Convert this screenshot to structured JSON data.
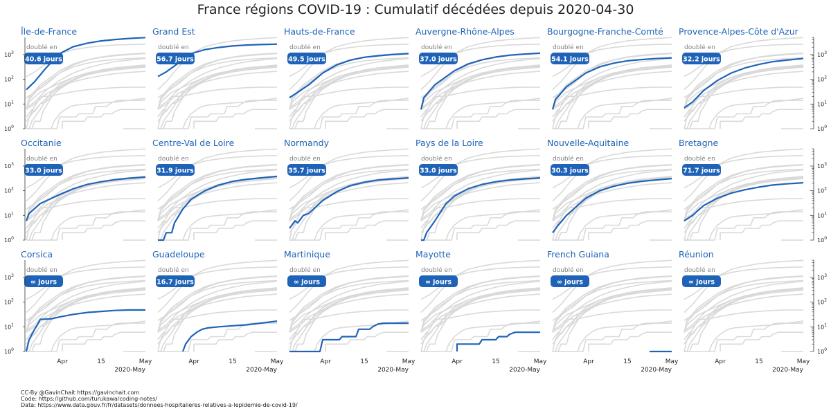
{
  "colors": {
    "highlight": "#1f63b8",
    "background": "#d9d9d9",
    "title": "#1f63b8",
    "badge": "#1f63b8"
  },
  "footer": {
    "line1": "CC-By @GavinChait https://gavinchait.com",
    "line2": "Code: https://github.com/turukawa/coding-notes/",
    "line3": "Data: https://www.data.gouv.fr/fr/datasets/donnees-hospitalieres-relatives-a-lepidemie-de-covid-19/"
  },
  "chart_data": {
    "type": "line",
    "title": "France régions COVID-19 : Cumulatif décédées depuis 2020-04-30",
    "yscale": "log",
    "ylim": [
      1,
      5000
    ],
    "y_ticks": [
      {
        "value": 1,
        "base": "10",
        "exp": "0"
      },
      {
        "value": 10,
        "base": "10",
        "exp": "1"
      },
      {
        "value": 100,
        "base": "10",
        "exp": "2"
      },
      {
        "value": 1000,
        "base": "10",
        "exp": "3"
      }
    ],
    "xlim": [
      "2020-03-19",
      "2020-05-01"
    ],
    "x_ticks": [
      {
        "date": "2020-04-01",
        "label": "Apr"
      },
      {
        "date": "2020-04-15",
        "label": "15"
      },
      {
        "date": "2020-05-01",
        "label": "May"
      }
    ],
    "x_sublabel": "2020-May",
    "doubled_label": "doublé en",
    "panels": [
      {
        "name": "Île-de-France",
        "doubling": "40.6 jours",
        "points": [
          [
            "2020-03-19",
            38
          ],
          [
            "2020-03-22",
            80
          ],
          [
            "2020-03-26",
            280
          ],
          [
            "2020-03-31",
            1100
          ],
          [
            "2020-04-05",
            2100
          ],
          [
            "2020-04-10",
            2900
          ],
          [
            "2020-04-15",
            3600
          ],
          [
            "2020-04-20",
            4100
          ],
          [
            "2020-04-25",
            4500
          ],
          [
            "2020-05-01",
            4900
          ]
        ]
      },
      {
        "name": "Grand Est",
        "doubling": "56.7 jours",
        "points": [
          [
            "2020-03-19",
            130
          ],
          [
            "2020-03-22",
            200
          ],
          [
            "2020-03-26",
            420
          ],
          [
            "2020-03-31",
            1100
          ],
          [
            "2020-04-05",
            1600
          ],
          [
            "2020-04-10",
            1950
          ],
          [
            "2020-04-15",
            2250
          ],
          [
            "2020-04-20",
            2450
          ],
          [
            "2020-04-25",
            2550
          ],
          [
            "2020-05-01",
            2650
          ]
        ]
      },
      {
        "name": "Hauts-de-France",
        "doubling": "49.5 jours",
        "points": [
          [
            "2020-03-19",
            18
          ],
          [
            "2020-03-22",
            30
          ],
          [
            "2020-03-26",
            60
          ],
          [
            "2020-03-31",
            180
          ],
          [
            "2020-04-05",
            380
          ],
          [
            "2020-04-10",
            600
          ],
          [
            "2020-04-15",
            780
          ],
          [
            "2020-04-20",
            900
          ],
          [
            "2020-04-25",
            1000
          ],
          [
            "2020-05-01",
            1100
          ]
        ]
      },
      {
        "name": "Auvergne-Rhône-Alpes",
        "doubling": "37.0 jours",
        "points": [
          [
            "2020-03-19",
            6
          ],
          [
            "2020-03-20",
            18
          ],
          [
            "2020-03-24",
            60
          ],
          [
            "2020-03-31",
            220
          ],
          [
            "2020-04-05",
            420
          ],
          [
            "2020-04-10",
            620
          ],
          [
            "2020-04-15",
            800
          ],
          [
            "2020-04-20",
            950
          ],
          [
            "2020-04-25",
            1050
          ],
          [
            "2020-05-01",
            1150
          ]
        ]
      },
      {
        "name": "Bourgogne-Franche-Comté",
        "doubling": "54.1 jours",
        "points": [
          [
            "2020-03-19",
            6
          ],
          [
            "2020-03-20",
            15
          ],
          [
            "2020-03-24",
            50
          ],
          [
            "2020-03-31",
            180
          ],
          [
            "2020-04-05",
            320
          ],
          [
            "2020-04-10",
            450
          ],
          [
            "2020-04-15",
            560
          ],
          [
            "2020-04-20",
            630
          ],
          [
            "2020-04-25",
            690
          ],
          [
            "2020-05-01",
            740
          ]
        ]
      },
      {
        "name": "Provence-Alpes-Côte d'Azur",
        "doubling": "32.2 jours",
        "points": [
          [
            "2020-03-19",
            7
          ],
          [
            "2020-03-22",
            12
          ],
          [
            "2020-03-26",
            35
          ],
          [
            "2020-03-31",
            90
          ],
          [
            "2020-04-05",
            180
          ],
          [
            "2020-04-10",
            290
          ],
          [
            "2020-04-15",
            400
          ],
          [
            "2020-04-20",
            520
          ],
          [
            "2020-04-25",
            600
          ],
          [
            "2020-05-01",
            700
          ]
        ]
      },
      {
        "name": "Occitanie",
        "doubling": "33.0 jours",
        "points": [
          [
            "2020-03-19",
            6
          ],
          [
            "2020-03-20",
            12
          ],
          [
            "2020-03-24",
            30
          ],
          [
            "2020-03-31",
            70
          ],
          [
            "2020-04-05",
            120
          ],
          [
            "2020-04-10",
            180
          ],
          [
            "2020-04-15",
            230
          ],
          [
            "2020-04-20",
            280
          ],
          [
            "2020-04-25",
            320
          ],
          [
            "2020-05-01",
            360
          ]
        ]
      },
      {
        "name": "Centre-Val de Loire",
        "doubling": "31.9 jours",
        "points": [
          [
            "2020-03-19",
            1
          ],
          [
            "2020-03-21",
            1
          ],
          [
            "2020-03-22",
            2
          ],
          [
            "2020-03-24",
            2
          ],
          [
            "2020-03-25",
            5
          ],
          [
            "2020-03-28",
            18
          ],
          [
            "2020-03-31",
            45
          ],
          [
            "2020-04-05",
            100
          ],
          [
            "2020-04-10",
            170
          ],
          [
            "2020-04-15",
            240
          ],
          [
            "2020-04-20",
            290
          ],
          [
            "2020-04-25",
            330
          ],
          [
            "2020-05-01",
            380
          ]
        ]
      },
      {
        "name": "Normandy",
        "doubling": "35.7 jours",
        "points": [
          [
            "2020-03-19",
            3
          ],
          [
            "2020-03-21",
            6
          ],
          [
            "2020-03-22",
            5
          ],
          [
            "2020-03-24",
            10
          ],
          [
            "2020-03-26",
            12
          ],
          [
            "2020-03-31",
            40
          ],
          [
            "2020-04-05",
            90
          ],
          [
            "2020-04-10",
            160
          ],
          [
            "2020-04-15",
            220
          ],
          [
            "2020-04-20",
            270
          ],
          [
            "2020-04-25",
            300
          ],
          [
            "2020-05-01",
            330
          ]
        ]
      },
      {
        "name": "Pays de la Loire",
        "doubling": "33.0 jours",
        "points": [
          [
            "2020-03-19",
            1
          ],
          [
            "2020-03-20",
            1
          ],
          [
            "2020-03-21",
            2
          ],
          [
            "2020-03-24",
            6
          ],
          [
            "2020-03-28",
            30
          ],
          [
            "2020-03-31",
            60
          ],
          [
            "2020-04-05",
            120
          ],
          [
            "2020-04-10",
            180
          ],
          [
            "2020-04-15",
            230
          ],
          [
            "2020-04-20",
            270
          ],
          [
            "2020-04-25",
            300
          ],
          [
            "2020-05-01",
            330
          ]
        ]
      },
      {
        "name": "Nouvelle-Aquitaine",
        "doubling": "30.3 jours",
        "points": [
          [
            "2020-03-19",
            2
          ],
          [
            "2020-03-21",
            4
          ],
          [
            "2020-03-24",
            10
          ],
          [
            "2020-03-28",
            25
          ],
          [
            "2020-03-31",
            50
          ],
          [
            "2020-04-05",
            100
          ],
          [
            "2020-04-10",
            150
          ],
          [
            "2020-04-15",
            200
          ],
          [
            "2020-04-20",
            240
          ],
          [
            "2020-04-25",
            270
          ],
          [
            "2020-05-01",
            310
          ]
        ]
      },
      {
        "name": "Bretagne",
        "doubling": "71.7 jours",
        "points": [
          [
            "2020-03-19",
            6
          ],
          [
            "2020-03-22",
            10
          ],
          [
            "2020-03-26",
            25
          ],
          [
            "2020-03-31",
            50
          ],
          [
            "2020-04-05",
            80
          ],
          [
            "2020-04-10",
            110
          ],
          [
            "2020-04-15",
            140
          ],
          [
            "2020-04-20",
            170
          ],
          [
            "2020-04-25",
            190
          ],
          [
            "2020-05-01",
            210
          ]
        ]
      },
      {
        "name": "Corsica",
        "doubling": "∞ jours",
        "points": [
          [
            "2020-03-19",
            1
          ],
          [
            "2020-03-20",
            3
          ],
          [
            "2020-03-22",
            8
          ],
          [
            "2020-03-23",
            12
          ],
          [
            "2020-03-24",
            20
          ],
          [
            "2020-03-28",
            21
          ],
          [
            "2020-03-31",
            25
          ],
          [
            "2020-04-05",
            32
          ],
          [
            "2020-04-10",
            38
          ],
          [
            "2020-04-15",
            42
          ],
          [
            "2020-04-20",
            46
          ],
          [
            "2020-04-25",
            48
          ],
          [
            "2020-05-01",
            48
          ]
        ]
      },
      {
        "name": "Guadeloupe",
        "doubling": "16.7 jours",
        "points": [
          [
            "2020-03-28",
            1
          ],
          [
            "2020-03-29",
            2
          ],
          [
            "2020-03-31",
            4
          ],
          [
            "2020-04-02",
            6
          ],
          [
            "2020-04-04",
            8
          ],
          [
            "2020-04-06",
            9
          ],
          [
            "2020-04-10",
            10
          ],
          [
            "2020-04-15",
            11
          ],
          [
            "2020-04-20",
            12
          ],
          [
            "2020-04-25",
            14
          ],
          [
            "2020-05-01",
            17
          ]
        ]
      },
      {
        "name": "Martinique",
        "doubling": "∞ jours",
        "points": [
          [
            "2020-03-19",
            1
          ],
          [
            "2020-03-30",
            1
          ],
          [
            "2020-03-31",
            3
          ],
          [
            "2020-04-06",
            3
          ],
          [
            "2020-04-07",
            4
          ],
          [
            "2020-04-12",
            4
          ],
          [
            "2020-04-13",
            8
          ],
          [
            "2020-04-17",
            8
          ],
          [
            "2020-04-18",
            10
          ],
          [
            "2020-04-20",
            13
          ],
          [
            "2020-04-22",
            14
          ],
          [
            "2020-05-01",
            14
          ]
        ]
      },
      {
        "name": "Mayotte",
        "doubling": "∞ jours",
        "points": [
          [
            "2020-04-01",
            1
          ],
          [
            "2020-04-01",
            2
          ],
          [
            "2020-04-09",
            2
          ],
          [
            "2020-04-10",
            3
          ],
          [
            "2020-04-15",
            3
          ],
          [
            "2020-04-16",
            4
          ],
          [
            "2020-04-19",
            4
          ],
          [
            "2020-04-20",
            5
          ],
          [
            "2020-04-22",
            6
          ],
          [
            "2020-05-01",
            6
          ]
        ]
      },
      {
        "name": "French Guiana",
        "doubling": "∞ jours",
        "points": [
          [
            "2020-04-23",
            1
          ],
          [
            "2020-05-01",
            1
          ]
        ]
      },
      {
        "name": "Réunion",
        "doubling": "∞ jours",
        "points": []
      }
    ]
  }
}
